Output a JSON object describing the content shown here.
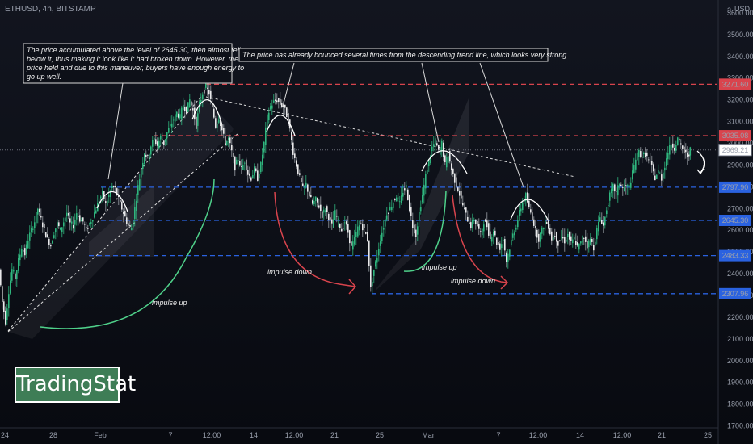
{
  "header": {
    "symbol": "ETHUSD, 4h, BITSTAMP",
    "currency": "USD"
  },
  "logo": {
    "text": "TradingStat",
    "bg": "#3e7d56"
  },
  "annotations": [
    {
      "id": "note-1",
      "lines": [
        "The price accumulated above the level of 2645.30, then almost fell",
        "below it, thus making it look like it had broken down. However, the",
        "price held and due to this maneuver, buyers have enough energy to",
        "go up well."
      ]
    },
    {
      "id": "note-2",
      "lines": [
        "The price has already bounced several times from the descending trend line, which looks very strong."
      ]
    },
    {
      "id": "impulse-1",
      "lines": [
        "impulse up"
      ]
    },
    {
      "id": "impulse-2",
      "lines": [
        "impulse down"
      ]
    },
    {
      "id": "impulse-3",
      "lines": [
        "impulse up"
      ]
    },
    {
      "id": "impulse-4",
      "lines": [
        "impulse down"
      ]
    }
  ],
  "chart_data": {
    "type": "candlestick",
    "ylim": [
      1650,
      3700
    ],
    "y_axis_ticks": [
      1700,
      1800,
      1900,
      2000,
      2100,
      2200,
      2300,
      2400,
      2500,
      2600,
      2700,
      2800,
      2900,
      3000,
      3100,
      3200,
      3300,
      3400,
      3500,
      3600
    ],
    "y_tick_labels": [
      "1700.00",
      "1800.00",
      "1900.00",
      "2000.00",
      "2100.00",
      "2200.00",
      "2300.00",
      "2400.00",
      "2500.00",
      "2600.00",
      "2700.00",
      "2800.00",
      "2900.00",
      "3000.00",
      "3100.00",
      "3200.00",
      "3300.00",
      "3400.00",
      "3500.00",
      "3600.00"
    ],
    "y_top_label": "3",
    "x_tick_labels": [
      "24",
      "28",
      "Feb",
      "7",
      "12:00",
      "14",
      "12:00",
      "21",
      "25",
      "Mar",
      "7",
      "12:00",
      "14",
      "12:00",
      "21",
      "25"
    ],
    "levels": [
      {
        "value": 3271.6,
        "label": "3271.60",
        "color": "#d9444d"
      },
      {
        "value": 3035.08,
        "label": "3035.08",
        "color": "#d9444d"
      },
      {
        "value": 2797.9,
        "label": "2797.90",
        "color": "#2a62e0"
      },
      {
        "value": 2645.3,
        "label": "2645.30",
        "color": "#2a62e0"
      },
      {
        "value": 2483.33,
        "label": "2483.33",
        "color": "#2a62e0"
      },
      {
        "value": 2307.96,
        "label": "2307.96",
        "color": "#2a62e0"
      }
    ],
    "last_price": {
      "value": 2969.21,
      "label": "2969.21"
    },
    "close_path": [
      [
        0,
        2420
      ],
      [
        4,
        2270
      ],
      [
        8,
        2180
      ],
      [
        12,
        2320
      ],
      [
        16,
        2420
      ],
      [
        20,
        2380
      ],
      [
        24,
        2460
      ],
      [
        28,
        2520
      ],
      [
        32,
        2490
      ],
      [
        36,
        2560
      ],
      [
        40,
        2600
      ],
      [
        44,
        2640
      ],
      [
        48,
        2700
      ],
      [
        52,
        2650
      ],
      [
        56,
        2600
      ],
      [
        60,
        2560
      ],
      [
        64,
        2530
      ],
      [
        68,
        2590
      ],
      [
        72,
        2630
      ],
      [
        76,
        2600
      ],
      [
        80,
        2640
      ],
      [
        84,
        2680
      ],
      [
        88,
        2630
      ],
      [
        92,
        2620
      ],
      [
        96,
        2680
      ],
      [
        100,
        2650
      ],
      [
        104,
        2640
      ],
      [
        108,
        2600
      ],
      [
        112,
        2630
      ],
      [
        116,
        2660
      ],
      [
        120,
        2700
      ],
      [
        124,
        2740
      ],
      [
        128,
        2770
      ],
      [
        132,
        2720
      ],
      [
        136,
        2760
      ],
      [
        140,
        2800
      ],
      [
        144,
        2790
      ],
      [
        148,
        2740
      ],
      [
        152,
        2700
      ],
      [
        156,
        2660
      ],
      [
        160,
        2620
      ],
      [
        164,
        2610
      ],
      [
        168,
        2700
      ],
      [
        172,
        2800
      ],
      [
        176,
        2880
      ],
      [
        180,
        2960
      ],
      [
        184,
        2930
      ],
      [
        188,
        2990
      ],
      [
        192,
        3020
      ],
      [
        196,
        2990
      ],
      [
        200,
        3030
      ],
      [
        204,
        3000
      ],
      [
        208,
        3050
      ],
      [
        212,
        3080
      ],
      [
        216,
        3110
      ],
      [
        220,
        3140
      ],
      [
        224,
        3120
      ],
      [
        228,
        3180
      ],
      [
        232,
        3150
      ],
      [
        236,
        3200
      ],
      [
        240,
        3150
      ],
      [
        244,
        3080
      ],
      [
        248,
        3180
      ],
      [
        252,
        3230
      ],
      [
        256,
        3260
      ],
      [
        260,
        3230
      ],
      [
        264,
        3160
      ],
      [
        268,
        3080
      ],
      [
        272,
        3120
      ],
      [
        276,
        3060
      ],
      [
        280,
        3000
      ],
      [
        284,
        3020
      ],
      [
        288,
        2960
      ],
      [
        292,
        2890
      ],
      [
        296,
        2930
      ],
      [
        300,
        2880
      ],
      [
        304,
        2920
      ],
      [
        308,
        2860
      ],
      [
        312,
        2840
      ],
      [
        316,
        2880
      ],
      [
        320,
        2840
      ],
      [
        324,
        2900
      ],
      [
        328,
        3000
      ],
      [
        332,
        3120
      ],
      [
        336,
        3170
      ],
      [
        340,
        3190
      ],
      [
        344,
        3200
      ],
      [
        348,
        3180
      ],
      [
        352,
        3170
      ],
      [
        356,
        3130
      ],
      [
        360,
        3060
      ],
      [
        364,
        2960
      ],
      [
        368,
        2900
      ],
      [
        372,
        2840
      ],
      [
        376,
        2790
      ],
      [
        380,
        2810
      ],
      [
        384,
        2760
      ],
      [
        388,
        2720
      ],
      [
        392,
        2740
      ],
      [
        396,
        2710
      ],
      [
        400,
        2670
      ],
      [
        404,
        2700
      ],
      [
        408,
        2660
      ],
      [
        412,
        2620
      ],
      [
        416,
        2680
      ],
      [
        420,
        2640
      ],
      [
        424,
        2600
      ],
      [
        428,
        2640
      ],
      [
        432,
        2590
      ],
      [
        436,
        2520
      ],
      [
        440,
        2560
      ],
      [
        444,
        2610
      ],
      [
        448,
        2630
      ],
      [
        452,
        2600
      ],
      [
        456,
        2560
      ],
      [
        460,
        2330
      ],
      [
        464,
        2420
      ],
      [
        468,
        2480
      ],
      [
        472,
        2560
      ],
      [
        476,
        2620
      ],
      [
        480,
        2680
      ],
      [
        484,
        2700
      ],
      [
        488,
        2730
      ],
      [
        492,
        2760
      ],
      [
        496,
        2720
      ],
      [
        500,
        2780
      ],
      [
        504,
        2800
      ],
      [
        508,
        2700
      ],
      [
        512,
        2620
      ],
      [
        516,
        2580
      ],
      [
        520,
        2680
      ],
      [
        524,
        2760
      ],
      [
        528,
        2850
      ],
      [
        532,
        2920
      ],
      [
        536,
        2980
      ],
      [
        540,
        3010
      ],
      [
        544,
        2960
      ],
      [
        548,
        3000
      ],
      [
        552,
        2900
      ],
      [
        556,
        2950
      ],
      [
        560,
        2880
      ],
      [
        564,
        2830
      ],
      [
        568,
        2790
      ],
      [
        572,
        2740
      ],
      [
        576,
        2690
      ],
      [
        580,
        2650
      ],
      [
        584,
        2620
      ],
      [
        588,
        2650
      ],
      [
        592,
        2620
      ],
      [
        596,
        2580
      ],
      [
        600,
        2640
      ],
      [
        604,
        2620
      ],
      [
        608,
        2560
      ],
      [
        612,
        2600
      ],
      [
        616,
        2540
      ],
      [
        620,
        2520
      ],
      [
        624,
        2560
      ],
      [
        628,
        2460
      ],
      [
        632,
        2520
      ],
      [
        636,
        2580
      ],
      [
        640,
        2620
      ],
      [
        644,
        2680
      ],
      [
        648,
        2730
      ],
      [
        652,
        2760
      ],
      [
        656,
        2700
      ],
      [
        660,
        2660
      ],
      [
        664,
        2600
      ],
      [
        668,
        2560
      ],
      [
        672,
        2600
      ],
      [
        676,
        2640
      ],
      [
        680,
        2620
      ],
      [
        684,
        2560
      ],
      [
        688,
        2580
      ],
      [
        692,
        2540
      ],
      [
        696,
        2570
      ],
      [
        700,
        2550
      ],
      [
        704,
        2580
      ],
      [
        708,
        2540
      ],
      [
        712,
        2560
      ],
      [
        716,
        2520
      ],
      [
        720,
        2540
      ],
      [
        724,
        2570
      ],
      [
        728,
        2530
      ],
      [
        732,
        2560
      ],
      [
        736,
        2520
      ],
      [
        740,
        2600
      ],
      [
        744,
        2660
      ],
      [
        748,
        2620
      ],
      [
        752,
        2700
      ],
      [
        756,
        2760
      ],
      [
        760,
        2800
      ],
      [
        764,
        2770
      ],
      [
        768,
        2820
      ],
      [
        772,
        2790
      ],
      [
        776,
        2800
      ],
      [
        780,
        2800
      ],
      [
        784,
        2860
      ],
      [
        788,
        2930
      ],
      [
        792,
        2960
      ],
      [
        796,
        2940
      ],
      [
        800,
        2950
      ],
      [
        804,
        2920
      ],
      [
        808,
        2890
      ],
      [
        812,
        2840
      ],
      [
        816,
        2870
      ],
      [
        820,
        2840
      ],
      [
        824,
        2900
      ],
      [
        828,
        2960
      ],
      [
        832,
        3000
      ],
      [
        836,
        2980
      ],
      [
        840,
        3020
      ],
      [
        844,
        2990
      ],
      [
        848,
        2960
      ],
      [
        852,
        2940
      ],
      [
        855,
        2969
      ]
    ]
  }
}
